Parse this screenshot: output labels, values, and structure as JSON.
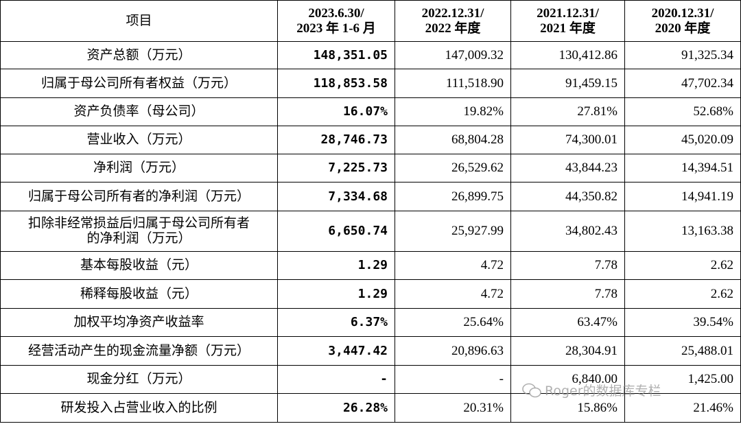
{
  "table": {
    "header": [
      [
        "项目"
      ],
      [
        "2023.6.30/",
        "2023 年 1-6 月"
      ],
      [
        "2022.12.31/",
        "2022 年度"
      ],
      [
        "2021.12.31/",
        "2021 年度"
      ],
      [
        "2020.12.31/",
        "2020 年度"
      ]
    ],
    "rows": [
      [
        [
          "资产总额（万元）"
        ],
        "148,351.05",
        "147,009.32",
        "130,412.86",
        "91,325.34"
      ],
      [
        [
          "归属于母公司所有者权益（万元）"
        ],
        "118,853.58",
        "111,518.90",
        "91,459.15",
        "47,702.34"
      ],
      [
        [
          "资产负债率（母公司）"
        ],
        "16.07%",
        "19.82%",
        "27.81%",
        "52.68%"
      ],
      [
        [
          "营业收入（万元）"
        ],
        "28,746.73",
        "68,804.28",
        "74,300.01",
        "45,020.09"
      ],
      [
        [
          "净利润（万元）"
        ],
        "7,225.73",
        "26,529.62",
        "43,844.23",
        "14,394.51"
      ],
      [
        [
          "归属于母公司所有者的净利润（万元）"
        ],
        "7,334.68",
        "26,899.75",
        "44,350.82",
        "14,941.19"
      ],
      [
        [
          "扣除非经常损益后归属于母公司所有者",
          "的净利润（万元）"
        ],
        "6,650.74",
        "25,927.99",
        "34,802.43",
        "13,163.38"
      ],
      [
        [
          "基本每股收益（元）"
        ],
        "1.29",
        "4.72",
        "7.78",
        "2.62"
      ],
      [
        [
          "稀释每股收益（元）"
        ],
        "1.29",
        "4.72",
        "7.78",
        "2.62"
      ],
      [
        [
          "加权平均净资产收益率"
        ],
        "6.37%",
        "25.64%",
        "63.47%",
        "39.54%"
      ],
      [
        [
          "经营活动产生的现金流量净额（万元）"
        ],
        "3,447.42",
        "20,896.63",
        "28,304.91",
        "25,488.01"
      ],
      [
        [
          "现金分红（万元）"
        ],
        "-",
        "-",
        "6,840.00",
        "1,425.00"
      ],
      [
        [
          "研发投入占营业收入的比例"
        ],
        "26.28%",
        "20.31%",
        "15.86%",
        "21.46%"
      ]
    ]
  },
  "watermark": "Roger的数据库专栏"
}
